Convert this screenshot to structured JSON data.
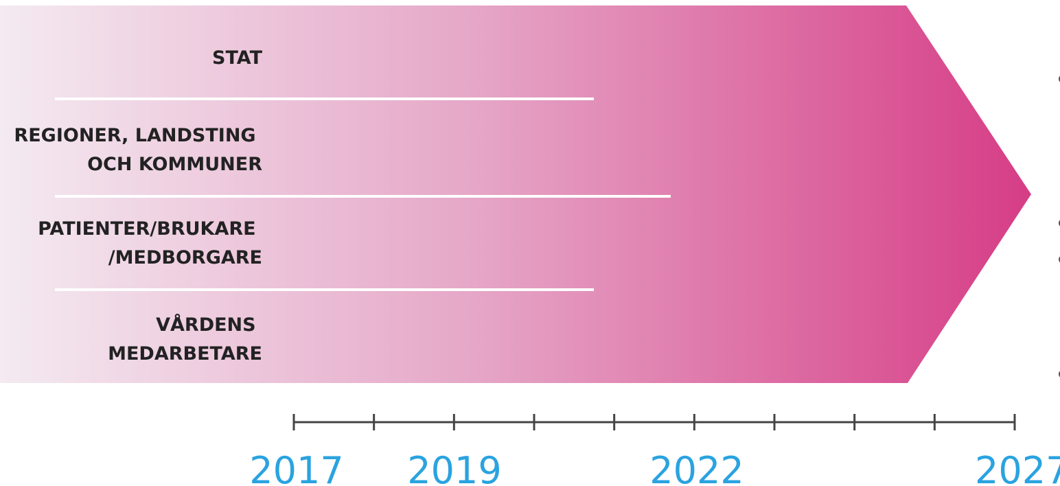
{
  "colors": {
    "arrow_start": "#f4eaf1",
    "arrow_end": "#d63d86",
    "divider": "#ffffff",
    "label_text": "#222222",
    "axis": "#444444",
    "year_text": "#2aa3e0"
  },
  "lanes": [
    {
      "lines": [
        "STAT"
      ]
    },
    {
      "lines": [
        "REGIONER, LANDSTING",
        "OCH KOMMUNER"
      ]
    },
    {
      "lines": [
        "PATIENTER/BRUKARE",
        "/MEDBORGARE"
      ]
    },
    {
      "lines": [
        "VÅRDENS",
        "MEDARBETARE"
      ]
    }
  ],
  "timeline": {
    "tick_count": 10,
    "year_labels": [
      "2017",
      "2019",
      "2022",
      "2027"
    ]
  }
}
